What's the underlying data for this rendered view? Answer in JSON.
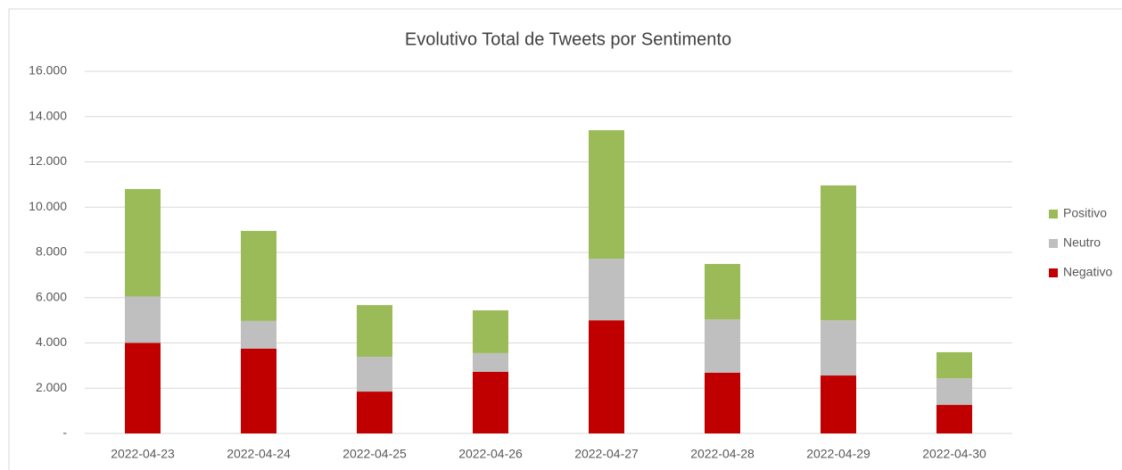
{
  "chart_data": {
    "type": "stacked_bar",
    "title": "Evolutivo Total de Tweets por Sentimento",
    "categories": [
      "2022-04-23",
      "2022-04-24",
      "2022-04-25",
      "2022-04-26",
      "2022-04-27",
      "2022-04-28",
      "2022-04-29",
      "2022-04-30"
    ],
    "series": [
      {
        "name": "Negativo",
        "color": "#c00000",
        "values": [
          4000,
          3750,
          1850,
          2720,
          5000,
          2680,
          2560,
          1260
        ]
      },
      {
        "name": "Neutro",
        "color": "#bfbfbf",
        "values": [
          2050,
          1220,
          1540,
          830,
          2720,
          2360,
          2440,
          1180
        ]
      },
      {
        "name": "Positivo",
        "color": "#9bbb59",
        "values": [
          4750,
          3980,
          2280,
          1890,
          5680,
          2450,
          5960,
          1150
        ]
      }
    ],
    "ylim": [
      0,
      16000
    ],
    "yticks": [
      {
        "value": 0,
        "label": "-"
      },
      {
        "value": 2000,
        "label": "2.000"
      },
      {
        "value": 4000,
        "label": "4.000"
      },
      {
        "value": 6000,
        "label": "6.000"
      },
      {
        "value": 8000,
        "label": "8.000"
      },
      {
        "value": 10000,
        "label": "10.000"
      },
      {
        "value": 12000,
        "label": "12.000"
      },
      {
        "value": 14000,
        "label": "14.000"
      },
      {
        "value": 16000,
        "label": "16.000"
      }
    ],
    "grid": true,
    "legend": "right"
  }
}
